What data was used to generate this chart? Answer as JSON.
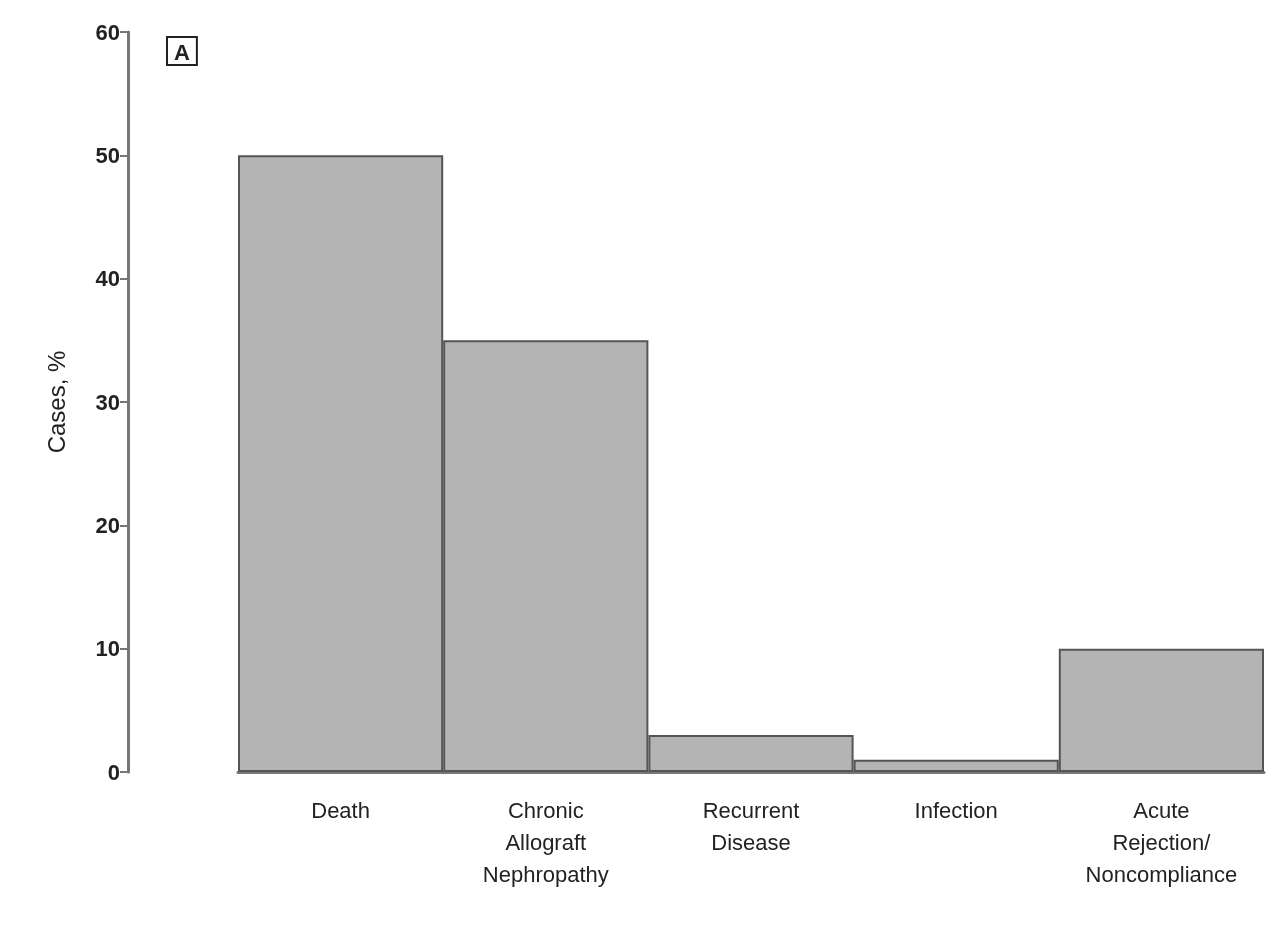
{
  "chart_data": {
    "type": "bar",
    "categories": [
      "Death",
      "Chronic\nAllograft\nNephropathy",
      "Recurrent\nDisease",
      "Infection",
      "Acute\nRejection/\nNoncompliance"
    ],
    "values": [
      50,
      35,
      3,
      1,
      10
    ],
    "color": "#b4b4b4",
    "ylabel": "Cases, %",
    "ylim": [
      0,
      60
    ],
    "yticks": [
      0,
      10,
      20,
      30,
      40,
      50,
      60
    ],
    "annotations": [
      "A"
    ],
    "grid": false
  }
}
